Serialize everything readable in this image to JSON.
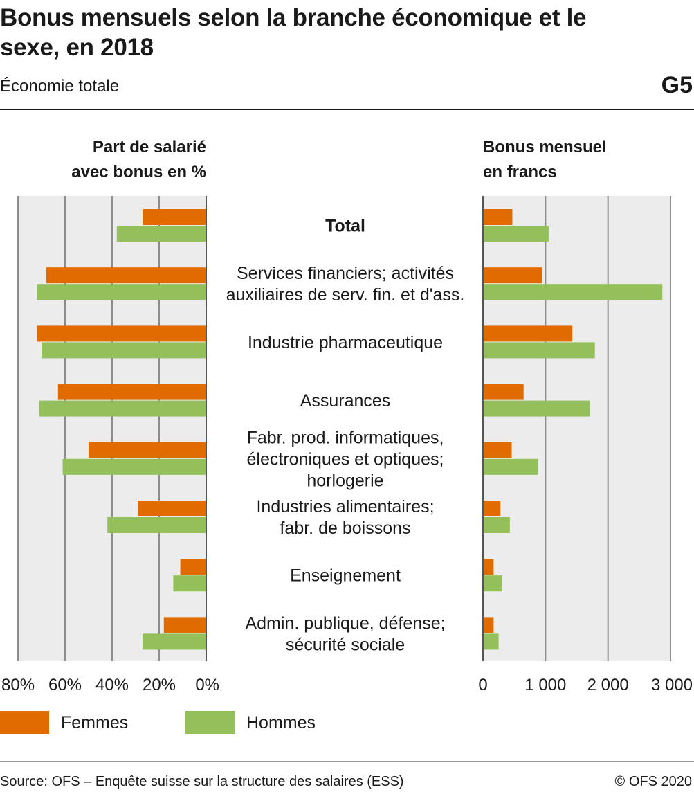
{
  "header": {
    "title": "Bonus mensuels selon la branche économique et le sexe, en 2018",
    "subtitle": "Économie totale",
    "figure_id": "G5"
  },
  "legend": [
    {
      "label": "Femmes",
      "color": "#e06c00"
    },
    {
      "label": "Hommes",
      "color": "#93c05a"
    }
  ],
  "footer": {
    "source": "Source: OFS – Enquête suisse sur la structure des salaires (ESS)",
    "copyright": "© OFS 2020"
  },
  "colors": {
    "femmes": "#e06c00",
    "hommes": "#93c05a",
    "plot_bg": "#ececec",
    "grid": "#8c8c8c"
  },
  "chart_data": [
    {
      "type": "bar",
      "orientation": "horizontal",
      "direction": "right-to-left",
      "title": "Part de salarié avec bonus en %",
      "title_lines": [
        "Part de salarié",
        "avec bonus en %"
      ],
      "categories": [
        "Total",
        "Services financiers; activités auxiliaires de serv. fin. et d'ass.",
        "Industrie pharmaceutique",
        "Assurances",
        "Fabr. prod. informatiques, électroniques et optiques; horlogerie",
        "Industries alimentaires; fabr. de boissons",
        "Enseignement",
        "Admin. publique, défense; sécurité sociale"
      ],
      "category_lines": [
        [
          "Total"
        ],
        [
          "Services financiers; activités",
          "auxiliaires de serv. fin. et d'ass."
        ],
        [
          "Industrie pharmaceutique"
        ],
        [
          "Assurances"
        ],
        [
          "Fabr. prod. informatiques,",
          "électroniques et optiques;",
          "horlogerie"
        ],
        [
          "Industries alimentaires;",
          "fabr. de boissons"
        ],
        [
          "Enseignement"
        ],
        [
          "Admin. publique, défense;",
          "sécurité sociale"
        ]
      ],
      "series": [
        {
          "name": "Femmes",
          "values": [
            27,
            68,
            72,
            63,
            50,
            29,
            11,
            18
          ]
        },
        {
          "name": "Hommes",
          "values": [
            38,
            72,
            70,
            71,
            61,
            42,
            14,
            27
          ]
        }
      ],
      "xlim": [
        0,
        80
      ],
      "ticks": [
        80,
        60,
        40,
        20,
        0
      ],
      "tick_labels": [
        "80%",
        "60%",
        "40%",
        "20%",
        "0%"
      ],
      "grid": true
    },
    {
      "type": "bar",
      "orientation": "horizontal",
      "title": "Bonus mensuel en francs",
      "title_lines": [
        "Bonus mensuel",
        "en francs"
      ],
      "series": [
        {
          "name": "Femmes",
          "values": [
            470,
            950,
            1430,
            650,
            460,
            280,
            170,
            170
          ]
        },
        {
          "name": "Hommes",
          "values": [
            1050,
            2870,
            1790,
            1710,
            880,
            430,
            310,
            250
          ]
        }
      ],
      "xlim": [
        0,
        3000
      ],
      "ticks": [
        0,
        1000,
        2000,
        3000
      ],
      "tick_labels": [
        "0",
        "1 000",
        "2 000",
        "3 000"
      ],
      "grid": true
    }
  ]
}
